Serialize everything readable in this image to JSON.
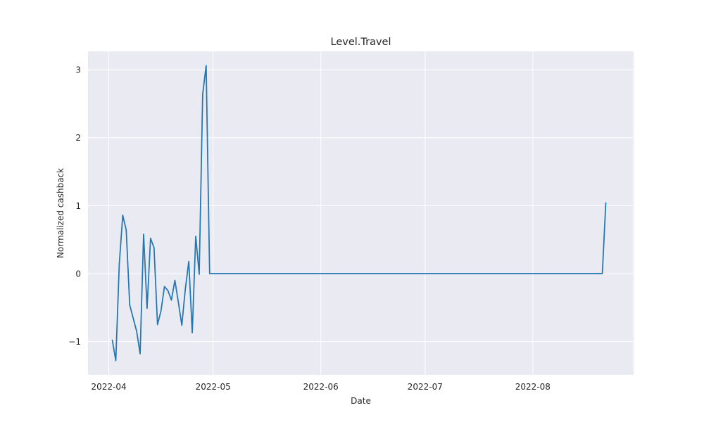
{
  "chart_data": {
    "type": "line",
    "title": "Level.Travel",
    "xlabel": "Date",
    "ylabel": "Normalized cashback",
    "x_tick_labels": [
      "2022-04",
      "2022-05",
      "2022-06",
      "2022-07",
      "2022-08"
    ],
    "x_ticks": [
      "2022-04-01",
      "2022-05-01",
      "2022-06-01",
      "2022-07-01",
      "2022-08-01"
    ],
    "y_ticks": [
      -1,
      0,
      1,
      2,
      3
    ],
    "y_tick_labels": [
      "−1",
      "0",
      "1",
      "2",
      "3"
    ],
    "xlim": [
      "2022-03-26",
      "2022-08-30"
    ],
    "ylim": [
      -1.49,
      3.27
    ],
    "grid": true,
    "colors": {
      "plot_background": "#eaeaf2",
      "grid": "#ffffff",
      "line": "#1f77b4",
      "text": "#262626"
    },
    "series": [
      {
        "x": [
          "2022-04-02",
          "2022-04-03",
          "2022-04-04",
          "2022-04-05",
          "2022-04-06",
          "2022-04-07",
          "2022-04-09",
          "2022-04-10",
          "2022-04-11",
          "2022-04-12",
          "2022-04-13",
          "2022-04-14",
          "2022-04-15",
          "2022-04-16",
          "2022-04-17",
          "2022-04-18",
          "2022-04-19",
          "2022-04-20",
          "2022-04-21",
          "2022-04-22",
          "2022-04-23",
          "2022-04-24",
          "2022-04-25",
          "2022-04-26",
          "2022-04-27",
          "2022-04-28",
          "2022-04-29",
          "2022-04-30",
          "2022-08-21",
          "2022-08-22"
        ],
        "y": [
          -0.98,
          -1.28,
          0.14,
          0.86,
          0.64,
          -0.46,
          -0.85,
          -1.18,
          0.58,
          -0.51,
          0.52,
          0.38,
          -0.75,
          -0.55,
          -0.19,
          -0.25,
          -0.39,
          -0.1,
          -0.42,
          -0.76,
          -0.23,
          0.18,
          -0.87,
          0.55,
          -0.01,
          2.64,
          3.06,
          0.0,
          0.0,
          1.04
        ]
      }
    ]
  }
}
